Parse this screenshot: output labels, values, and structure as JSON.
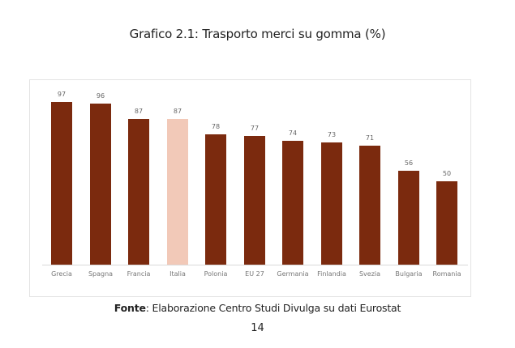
{
  "page": {
    "title": "Grafico 2.1: Trasporto merci su gomma (%)",
    "source_label": "Fonte",
    "source_text": ": Elaborazione Centro Studi Divulga su dati Eurostat",
    "page_number": "14"
  },
  "colors": {
    "bar_default": "#7b2a0e",
    "bar_highlight": "#f2c9b8"
  },
  "chart_data": {
    "type": "bar",
    "title": "Grafico 2.1: Trasporto merci su gomma (%)",
    "xlabel": "",
    "ylabel": "",
    "ylim": [
      0,
      100
    ],
    "grid": false,
    "legend": null,
    "categories": [
      "Grecia",
      "Spagna",
      "Francia",
      "Italia",
      "Polonia",
      "EU 27",
      "Germania",
      "Finlandia",
      "Svezia",
      "Bulgaria",
      "Romania"
    ],
    "values": [
      97,
      96,
      87,
      87,
      78,
      77,
      74,
      73,
      71,
      56,
      50
    ],
    "value_labels": [
      "97",
      "96",
      "87",
      "87",
      "78",
      "77",
      "74",
      "73",
      "71",
      "56",
      "50"
    ],
    "highlight": [
      "Italia"
    ],
    "annotations": [
      "Fonte: Elaborazione Centro Studi Divulga su dati Eurostat"
    ]
  }
}
